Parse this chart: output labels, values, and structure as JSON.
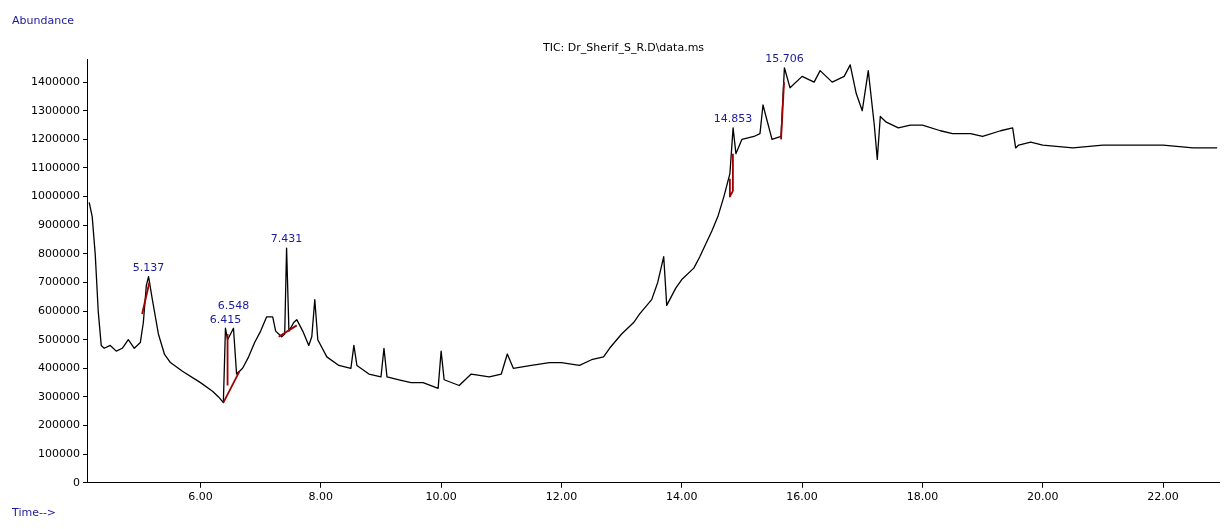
{
  "chart_data": {
    "type": "line",
    "title": "TIC: Dr_Sherif_S_R.D\\data.ms",
    "xlabel": "Time-->",
    "ylabel": "Abundance",
    "xlim": [
      4.13,
      22.93
    ],
    "ylim": [
      0,
      1480000
    ],
    "xticks": [
      {
        "value": 6,
        "label": "6.00"
      },
      {
        "value": 8,
        "label": "8.00"
      },
      {
        "value": 10,
        "label": "10.00"
      },
      {
        "value": 12,
        "label": "12.00"
      },
      {
        "value": 14,
        "label": "14.00"
      },
      {
        "value": 16,
        "label": "16.00"
      },
      {
        "value": 18,
        "label": "18.00"
      },
      {
        "value": 20,
        "label": "20.00"
      },
      {
        "value": 22,
        "label": "22.00"
      }
    ],
    "yticks": [
      0,
      100000,
      200000,
      300000,
      400000,
      500000,
      600000,
      700000,
      800000,
      900000,
      1000000,
      1100000,
      1200000,
      1300000,
      1400000
    ],
    "grid": false,
    "legend": false,
    "marker": "none",
    "line_style": "solid",
    "series": [
      {
        "color": "#000000",
        "x": [
          4.15,
          4.2,
          4.25,
          4.3,
          4.35,
          4.4,
          4.5,
          4.6,
          4.7,
          4.8,
          4.9,
          5.0,
          5.05,
          5.1,
          5.137,
          5.2,
          5.3,
          5.4,
          5.5,
          5.7,
          6.0,
          6.2,
          6.3,
          6.38,
          6.415,
          6.45,
          6.5,
          6.548,
          6.6,
          6.7,
          6.8,
          6.9,
          7.0,
          7.1,
          7.2,
          7.25,
          7.35,
          7.4,
          7.431,
          7.47,
          7.55,
          7.6,
          7.7,
          7.8,
          7.85,
          7.9,
          7.95,
          8.1,
          8.3,
          8.5,
          8.55,
          8.6,
          8.8,
          9.0,
          9.05,
          9.1,
          9.3,
          9.5,
          9.7,
          9.95,
          10.0,
          10.05,
          10.3,
          10.5,
          10.8,
          11.0,
          11.1,
          11.2,
          11.5,
          11.8,
          12.0,
          12.3,
          12.5,
          12.7,
          12.8,
          13.0,
          13.2,
          13.3,
          13.5,
          13.6,
          13.7,
          13.75,
          13.9,
          14.0,
          14.2,
          14.3,
          14.5,
          14.6,
          14.7,
          14.8,
          14.853,
          14.9,
          15.0,
          15.2,
          15.3,
          15.35,
          15.5,
          15.65,
          15.706,
          15.8,
          16.0,
          16.2,
          16.3,
          16.5,
          16.7,
          16.8,
          16.9,
          17.0,
          17.1,
          17.2,
          17.25,
          17.3,
          17.4,
          17.6,
          17.8,
          18.0,
          18.3,
          18.5,
          18.8,
          19.0,
          19.3,
          19.5,
          19.55,
          19.6,
          19.8,
          20.0,
          20.5,
          21.0,
          21.5,
          22.0,
          22.5,
          22.9
        ],
        "values": [
          980000,
          930000,
          800000,
          600000,
          480000,
          470000,
          480000,
          460000,
          470000,
          500000,
          470000,
          490000,
          560000,
          690000,
          720000,
          640000,
          520000,
          450000,
          420000,
          390000,
          350000,
          320000,
          300000,
          280000,
          540000,
          500000,
          520000,
          540000,
          380000,
          400000,
          440000,
          490000,
          530000,
          580000,
          580000,
          530000,
          510000,
          520000,
          820000,
          530000,
          560000,
          570000,
          530000,
          480000,
          510000,
          640000,
          500000,
          440000,
          410000,
          400000,
          480000,
          410000,
          380000,
          370000,
          470000,
          370000,
          360000,
          350000,
          350000,
          330000,
          460000,
          360000,
          340000,
          380000,
          370000,
          380000,
          450000,
          400000,
          410000,
          420000,
          420000,
          410000,
          430000,
          440000,
          470000,
          520000,
          560000,
          590000,
          640000,
          700000,
          790000,
          620000,
          680000,
          710000,
          750000,
          790000,
          880000,
          930000,
          1000000,
          1080000,
          1240000,
          1150000,
          1200000,
          1210000,
          1220000,
          1320000,
          1200000,
          1210000,
          1450000,
          1380000,
          1420000,
          1400000,
          1440000,
          1400000,
          1420000,
          1460000,
          1360000,
          1300000,
          1440000,
          1250000,
          1130000,
          1280000,
          1260000,
          1240000,
          1250000,
          1250000,
          1230000,
          1220000,
          1220000,
          1210000,
          1230000,
          1240000,
          1170000,
          1180000,
          1190000,
          1180000,
          1170000,
          1180000,
          1180000,
          1180000,
          1170000,
          1170000
        ]
      },
      {
        "color": "#a00000",
        "x": [
          5.03,
          5.15
        ],
        "values": [
          590000,
          700000
        ]
      },
      {
        "color": "#a00000",
        "x": [
          6.38,
          6.65
        ],
        "values": [
          280000,
          390000
        ]
      },
      {
        "color": "#a00000",
        "x": [
          6.45,
          6.45
        ],
        "values": [
          340000,
          520000
        ]
      },
      {
        "color": "#a00000",
        "x": [
          7.3,
          7.6
        ],
        "values": [
          510000,
          550000
        ]
      },
      {
        "color": "#a00000",
        "x": [
          14.8,
          14.8,
          14.85,
          14.85
        ],
        "values": [
          1060000,
          1000000,
          1020000,
          1150000
        ]
      },
      {
        "color": "#a00000",
        "x": [
          15.65,
          15.7
        ],
        "values": [
          1200000,
          1400000
        ]
      }
    ],
    "annotations": [
      {
        "text": "5.137",
        "x": 5.137,
        "y": 720000
      },
      {
        "text": "6.415",
        "x": 6.415,
        "y": 540000
      },
      {
        "text": "6.548",
        "x": 6.548,
        "y": 540000
      },
      {
        "text": "7.431",
        "x": 7.431,
        "y": 820000
      },
      {
        "text": "14.853",
        "x": 14.853,
        "y": 1240000
      },
      {
        "text": "15.706",
        "x": 15.706,
        "y": 1450000
      }
    ]
  }
}
